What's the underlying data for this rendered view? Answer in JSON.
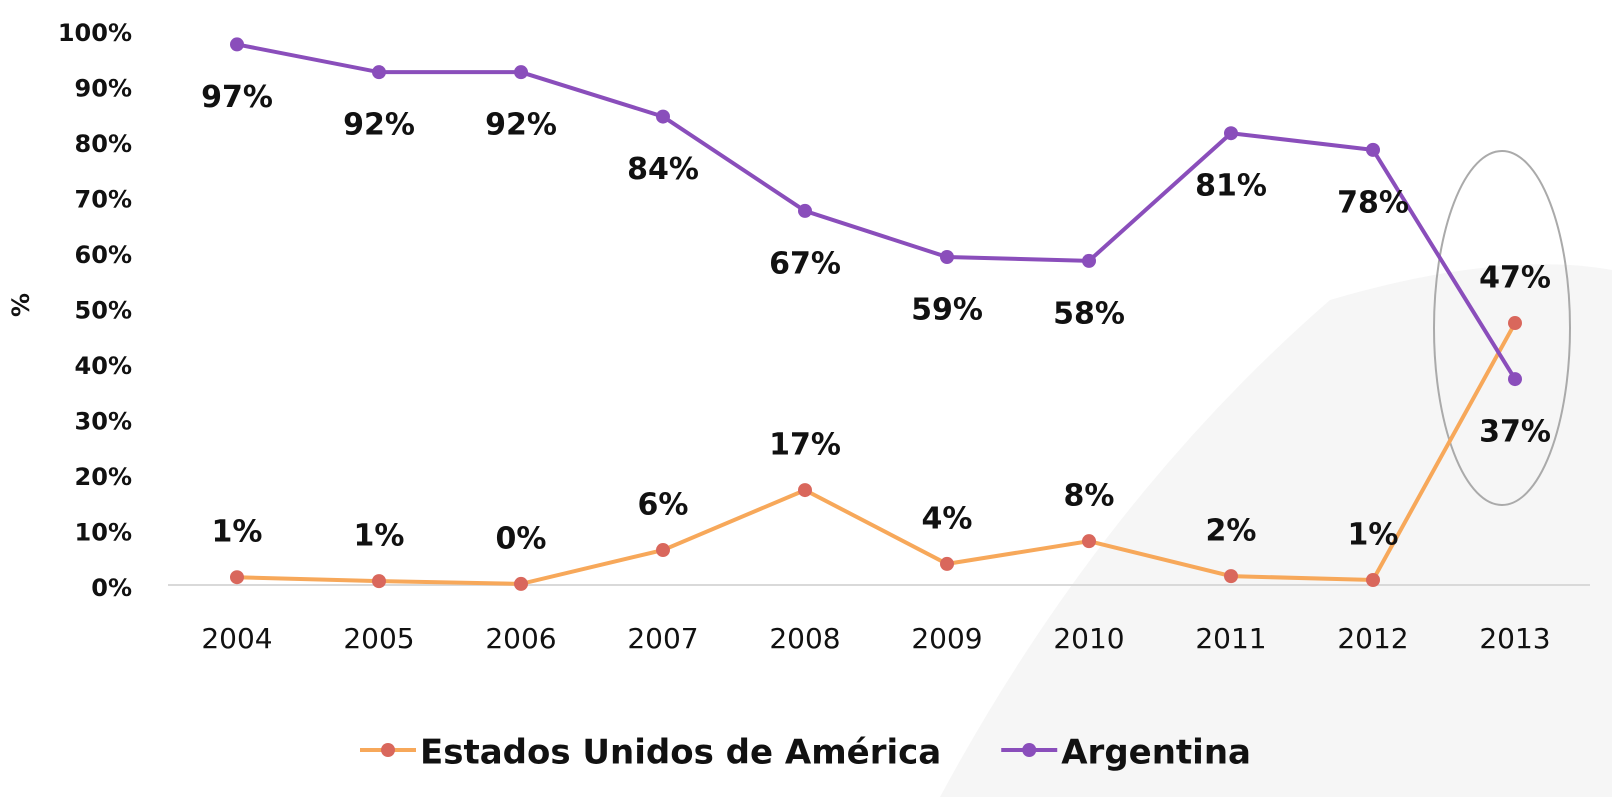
{
  "chart_data": {
    "type": "line",
    "y_label": "%",
    "categories": [
      "2004",
      "2005",
      "2006",
      "2007",
      "2008",
      "2009",
      "2010",
      "2011",
      "2012",
      "2013"
    ],
    "series": [
      {
        "name": "Estados Unidos de América",
        "color": "#f7a85a",
        "marker_color": "#d9675c",
        "values": [
          1.4,
          0.7,
          0.2,
          6.3,
          17.1,
          3.8,
          7.9,
          1.6,
          0.9,
          47.2
        ],
        "value_labels": [
          "1%",
          "1%",
          "0%",
          "6%",
          "17%",
          "4%",
          "8%",
          "2%",
          "1%",
          "47%"
        ]
      },
      {
        "name": "Argentina",
        "color": "#8a4ebb",
        "marker_color": "#8a4ebb",
        "values": [
          97.4,
          92.4,
          92.4,
          84.4,
          67.4,
          59.1,
          58.4,
          81.4,
          78.4,
          37.1
        ],
        "value_labels": [
          "97%",
          "92%",
          "92%",
          "84%",
          "67%",
          "59%",
          "58%",
          "81%",
          "78%",
          "37%"
        ]
      }
    ],
    "ylim": [
      0,
      100
    ],
    "yticks": [
      {
        "value": 0,
        "label": "0%"
      },
      {
        "value": 10,
        "label": "10%"
      },
      {
        "value": 20,
        "label": "20%"
      },
      {
        "value": 30,
        "label": "30%"
      },
      {
        "value": 40,
        "label": "40%"
      },
      {
        "value": 50,
        "label": "50%"
      },
      {
        "value": 60,
        "label": "60%"
      },
      {
        "value": 70,
        "label": "70%"
      },
      {
        "value": 80,
        "label": "80%"
      },
      {
        "value": 90,
        "label": "90%"
      },
      {
        "value": 100,
        "label": "100%"
      }
    ],
    "grid": false
  }
}
